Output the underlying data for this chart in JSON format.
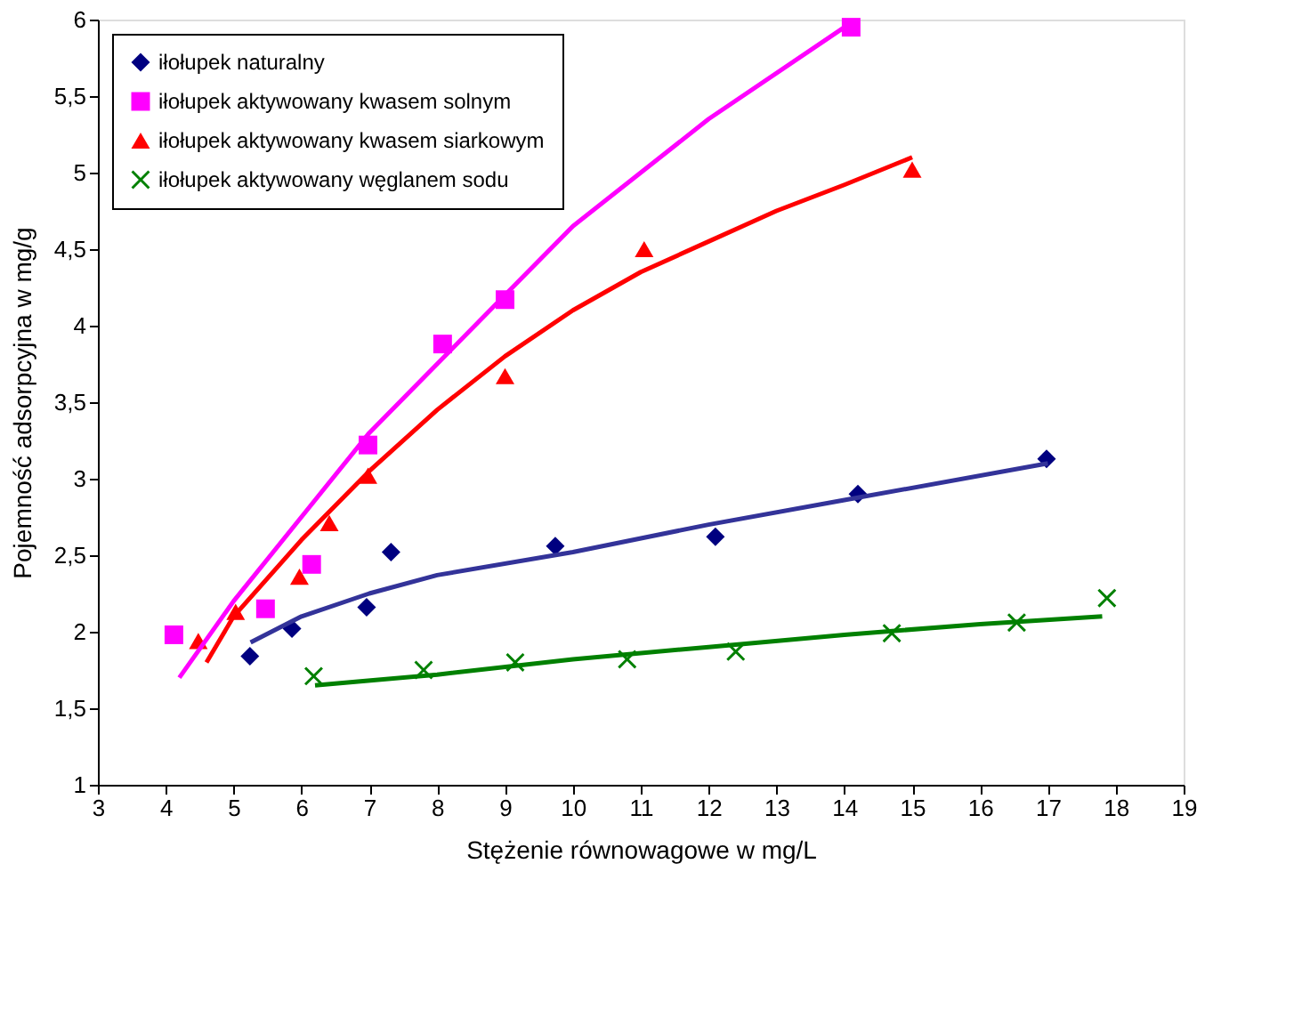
{
  "chart_data": {
    "type": "scatter",
    "xlabel": "Stężenie równowagowe w mg/L",
    "ylabel": "Pojemność adsorpcyjna w mg/g",
    "xlim": [
      3,
      19
    ],
    "xticks": [
      3,
      4,
      5,
      6,
      7,
      8,
      9,
      10,
      11,
      12,
      13,
      14,
      15,
      16,
      17,
      18,
      19
    ],
    "ylim": [
      1,
      6
    ],
    "yticks": [
      1,
      {
        "value": 1.5,
        "label": "1,5"
      },
      2,
      {
        "value": 2.5,
        "label": "2,5"
      },
      3,
      {
        "value": 3.5,
        "label": "3,5"
      },
      4,
      {
        "value": 4.5,
        "label": "4,5"
      },
      5,
      {
        "value": 5.5,
        "label": "5,5"
      },
      6
    ],
    "grid": false,
    "legend": "top left",
    "series": [
      {
        "name": "iłołupek naturalny",
        "type": "scatter",
        "marker": "diamond",
        "color": "#000080",
        "x": [
          5.24,
          5.86,
          6.96,
          7.32,
          9.74,
          12.1,
          14.2,
          16.98
        ],
        "values": [
          1.84,
          2.02,
          2.16,
          2.52,
          2.56,
          2.62,
          2.9,
          3.13
        ]
      },
      {
        "name": "iłołupek aktywowany kwasem solnym",
        "type": "scatter",
        "marker": "square",
        "color": "#ff00ff",
        "x": [
          4.12,
          5.47,
          6.15,
          6.98,
          8.08,
          9.0,
          14.1
        ],
        "values": [
          1.98,
          2.15,
          2.44,
          3.22,
          3.88,
          4.17,
          5.95
        ]
      },
      {
        "name": "iłołupek aktywowany kwasem siarkowym",
        "type": "scatter",
        "marker": "triangle",
        "color": "#ff0000",
        "x": [
          4.48,
          5.03,
          5.97,
          6.41,
          6.98,
          9.0,
          11.05,
          15.0
        ],
        "values": [
          1.94,
          2.13,
          2.36,
          2.71,
          3.02,
          3.67,
          4.5,
          5.02
        ]
      },
      {
        "name": "iłołupek aktywowany węglanem sodu",
        "type": "scatter",
        "marker": "cross",
        "color": "#008000",
        "x": [
          6.18,
          7.8,
          9.15,
          10.8,
          12.4,
          14.7,
          16.54,
          17.87
        ],
        "values": [
          1.71,
          1.75,
          1.8,
          1.82,
          1.87,
          1.99,
          2.06,
          2.22
        ]
      },
      {
        "type": "line",
        "marker": "none",
        "color": "#333399",
        "x": [
          5.25,
          6,
          7,
          8,
          10,
          12,
          14,
          17
        ],
        "values": [
          1.93,
          2.1,
          2.25,
          2.37,
          2.52,
          2.7,
          2.86,
          3.1
        ]
      },
      {
        "type": "line",
        "marker": "none",
        "color": "#ff00ff",
        "x": [
          4.2,
          5,
          6,
          7,
          8,
          9,
          10,
          12,
          14
        ],
        "values": [
          1.7,
          2.2,
          2.75,
          3.3,
          3.75,
          4.2,
          4.65,
          5.35,
          5.95
        ]
      },
      {
        "type": "line",
        "marker": "none",
        "color": "#ff0000",
        "x": [
          4.6,
          5,
          6,
          7,
          8,
          9,
          10,
          11,
          12,
          13,
          14,
          15
        ],
        "values": [
          1.8,
          2.1,
          2.6,
          3.05,
          3.45,
          3.8,
          4.1,
          4.35,
          4.55,
          4.75,
          4.92,
          5.1
        ]
      },
      {
        "type": "line",
        "marker": "none",
        "color": "#008000",
        "x": [
          6.2,
          8,
          10,
          12,
          14,
          16,
          17.8
        ],
        "values": [
          1.65,
          1.72,
          1.82,
          1.9,
          1.98,
          2.05,
          2.1
        ]
      }
    ]
  }
}
